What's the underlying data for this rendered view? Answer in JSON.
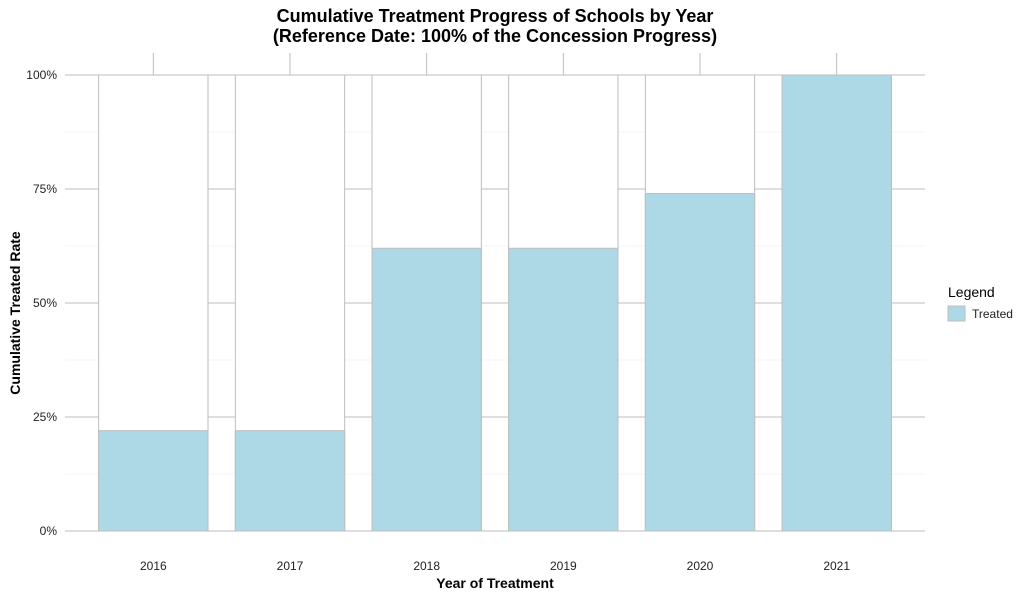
{
  "chart_data": {
    "type": "bar",
    "title": "Cumulative Treatment Progress of Schools by Year",
    "subtitle": "(Reference Date: 100% of the Concession Progress)",
    "xlabel": "Year of Treatment",
    "ylabel": "Cumulative Treated Rate",
    "categories": [
      "2016",
      "2017",
      "2018",
      "2019",
      "2020",
      "2021"
    ],
    "series": [
      {
        "name": "Treated",
        "values": [
          0.22,
          0.22,
          0.62,
          0.62,
          0.74,
          1.0
        ],
        "color": "#add8e6"
      }
    ],
    "reference": {
      "values": [
        1.0,
        1.0,
        1.0,
        1.0,
        1.0,
        1.0
      ],
      "fill": "#ffffff",
      "outline": "#bebebe"
    },
    "ylim": [
      0,
      1
    ],
    "yticks": [
      0,
      0.25,
      0.5,
      0.75,
      1.0
    ],
    "ytick_labels": [
      "0%",
      "25%",
      "50%",
      "75%",
      "100%"
    ],
    "grid": true,
    "legend": {
      "title": "Legend",
      "position": "right"
    }
  }
}
